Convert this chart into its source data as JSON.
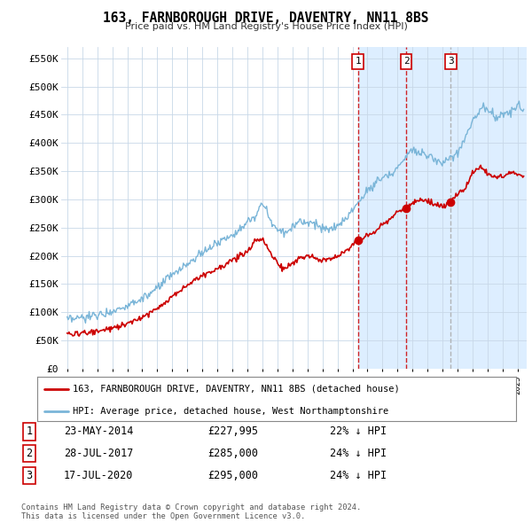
{
  "title": "163, FARNBOROUGH DRIVE, DAVENTRY, NN11 8BS",
  "subtitle": "Price paid vs. HM Land Registry's House Price Index (HPI)",
  "plot_bg_color": "#ffffff",
  "shade_color": "#ddeeff",
  "hpi_color": "#7ab5d8",
  "price_color": "#cc0000",
  "vline1_color": "#cc0000",
  "vline1_style": "--",
  "vline2_color": "#cc0000",
  "vline2_style": "--",
  "vline3_color": "#aaaaaa",
  "vline3_style": "--",
  "transactions": [
    {
      "date": 2014.38,
      "price": 227995,
      "label": "1"
    },
    {
      "date": 2017.57,
      "price": 285000,
      "label": "2"
    },
    {
      "date": 2020.54,
      "price": 295000,
      "label": "3"
    }
  ],
  "table_rows": [
    [
      "1",
      "23-MAY-2014",
      "£227,995",
      "22% ↓ HPI"
    ],
    [
      "2",
      "28-JUL-2017",
      "£285,000",
      "24% ↓ HPI"
    ],
    [
      "3",
      "17-JUL-2020",
      "£295,000",
      "24% ↓ HPI"
    ]
  ],
  "legend_entries": [
    "163, FARNBOROUGH DRIVE, DAVENTRY, NN11 8BS (detached house)",
    "HPI: Average price, detached house, West Northamptonshire"
  ],
  "footer": "Contains HM Land Registry data © Crown copyright and database right 2024.\nThis data is licensed under the Open Government Licence v3.0.",
  "ylim": [
    0,
    570000
  ],
  "yticks": [
    0,
    50000,
    100000,
    150000,
    200000,
    250000,
    300000,
    350000,
    400000,
    450000,
    500000,
    550000
  ],
  "ytick_labels": [
    "£0",
    "£50K",
    "£100K",
    "£150K",
    "£200K",
    "£250K",
    "£300K",
    "£350K",
    "£400K",
    "£450K",
    "£500K",
    "£550K"
  ],
  "xlim_start": 1994.6,
  "xlim_end": 2025.6,
  "xtick_years": [
    1995,
    1996,
    1997,
    1998,
    1999,
    2000,
    2001,
    2002,
    2003,
    2004,
    2005,
    2006,
    2007,
    2008,
    2009,
    2010,
    2011,
    2012,
    2013,
    2014,
    2015,
    2016,
    2017,
    2018,
    2019,
    2020,
    2021,
    2022,
    2023,
    2024,
    2025
  ]
}
